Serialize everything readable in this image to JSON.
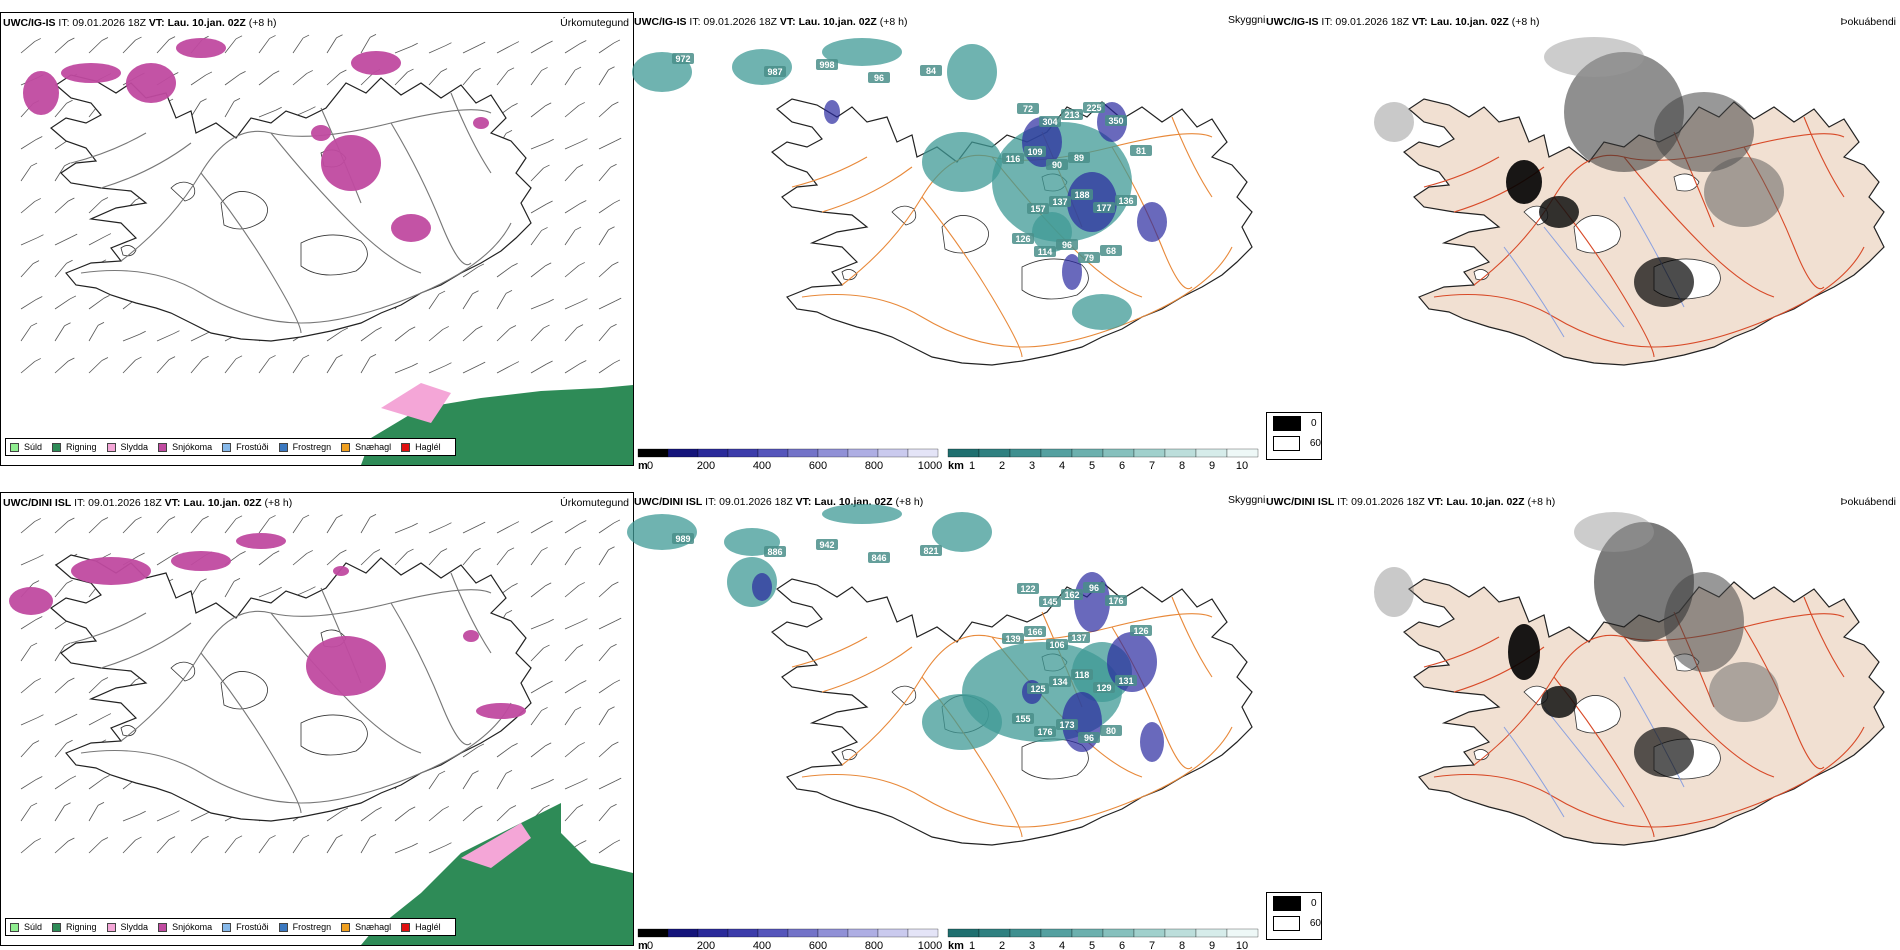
{
  "rows": [
    {
      "precip": {
        "model": "UWC/IG-IS",
        "it": "IT: 09.01.2026 18Z",
        "vt_label": "VT:",
        "vt_value": "Lau. 10.jan. 02Z",
        "lead": "(+8 h)",
        "title": "Úrkomutegund"
      },
      "cloud": {
        "model": "UWC/IG-IS",
        "it": "IT: 09.01.2026 18Z",
        "vt_label": "VT:",
        "vt_value": "Lau. 10.jan. 02Z",
        "lead": "(+8 h)",
        "title": "Skyggni",
        "labels": [
          "972",
          "987",
          "998",
          "96",
          "84",
          "72",
          "304",
          "213",
          "225",
          "350",
          "116",
          "109",
          "90",
          "89",
          "81",
          "157",
          "137",
          "188",
          "177",
          "136",
          "126",
          "114",
          "96",
          "79",
          "68"
        ]
      },
      "fog": {
        "model": "UWC/IG-IS",
        "it": "IT: 09.01.2026 18Z",
        "vt_label": "VT:",
        "vt_value": "Lau. 10.jan. 02Z",
        "lead": "(+8 h)",
        "title": "Þokuábendi"
      }
    },
    {
      "precip": {
        "model": "UWC/DINI ISL",
        "it": "IT: 09.01.2026 18Z",
        "vt_label": "VT:",
        "vt_value": "Lau. 10.jan. 02Z",
        "lead": "(+8 h)",
        "title": "Úrkomutegund"
      },
      "cloud": {
        "model": "UWC/DINI ISL",
        "it": "IT: 09.01.2026 18Z",
        "vt_label": "VT:",
        "vt_value": "Lau. 10.jan. 02Z",
        "lead": "(+8 h)",
        "title": "Skyggni",
        "labels": [
          "989",
          "886",
          "942",
          "846",
          "821",
          "122",
          "145",
          "162",
          "96",
          "176",
          "139",
          "166",
          "106",
          "137",
          "126",
          "125",
          "134",
          "118",
          "129",
          "131",
          "155",
          "176",
          "173",
          "96",
          "80"
        ]
      },
      "fog": {
        "model": "UWC/DINI ISL",
        "it": "IT: 09.01.2026 18Z",
        "vt_label": "VT:",
        "vt_value": "Lau. 10.jan. 02Z",
        "lead": "(+8 h)",
        "title": "Þokuábendi"
      }
    }
  ],
  "precip_legend": [
    {
      "label": "Súld",
      "color": "#90ee90"
    },
    {
      "label": "Rigning",
      "color": "#2e8b57"
    },
    {
      "label": "Slydda",
      "color": "#f4a6d7"
    },
    {
      "label": "Snjókoma",
      "color": "#c04aa0"
    },
    {
      "label": "Frostúði",
      "color": "#87b9ea"
    },
    {
      "label": "Frostregn",
      "color": "#3a78c0"
    },
    {
      "label": "Snæhagl",
      "color": "#f0a020"
    },
    {
      "label": "Haglél",
      "color": "#e01010"
    }
  ],
  "cloudbase_scale": {
    "unit": "m",
    "ticks": [
      "0",
      "200",
      "400",
      "600",
      "800",
      "1000"
    ],
    "colors": [
      "#000000",
      "#14147a",
      "#2a2a9a",
      "#3c3caa",
      "#5555bb",
      "#7373c8",
      "#9090d6",
      "#aeaee3",
      "#cacaee",
      "#e4e4f7"
    ]
  },
  "visibility_scale": {
    "unit": "km",
    "ticks": [
      "1",
      "2",
      "3",
      "4",
      "5",
      "6",
      "7",
      "8",
      "9",
      "10"
    ],
    "colors": [
      "#1f6f6f",
      "#2f8080",
      "#3f9090",
      "#54a0a0",
      "#6cb0ae",
      "#86c0bd",
      "#a0d0cc",
      "#bcdedb",
      "#d6ecea",
      "#eef8f7"
    ]
  },
  "fog_legend": [
    {
      "label": "0",
      "color": "#000000"
    },
    {
      "label": "60",
      "color": "#ffffff"
    }
  ],
  "colors": {
    "snow": "#c04aa0",
    "rain": "#2e8b57",
    "sleet": "#f4a6d7",
    "visibility": "#3f9a95",
    "cloudbase": "#2a2aa0",
    "roads_orange": "#e8893a",
    "roads_red": "#d84a28",
    "land_fog": "#f1e0d2",
    "rivers": "#8aa0e0"
  }
}
